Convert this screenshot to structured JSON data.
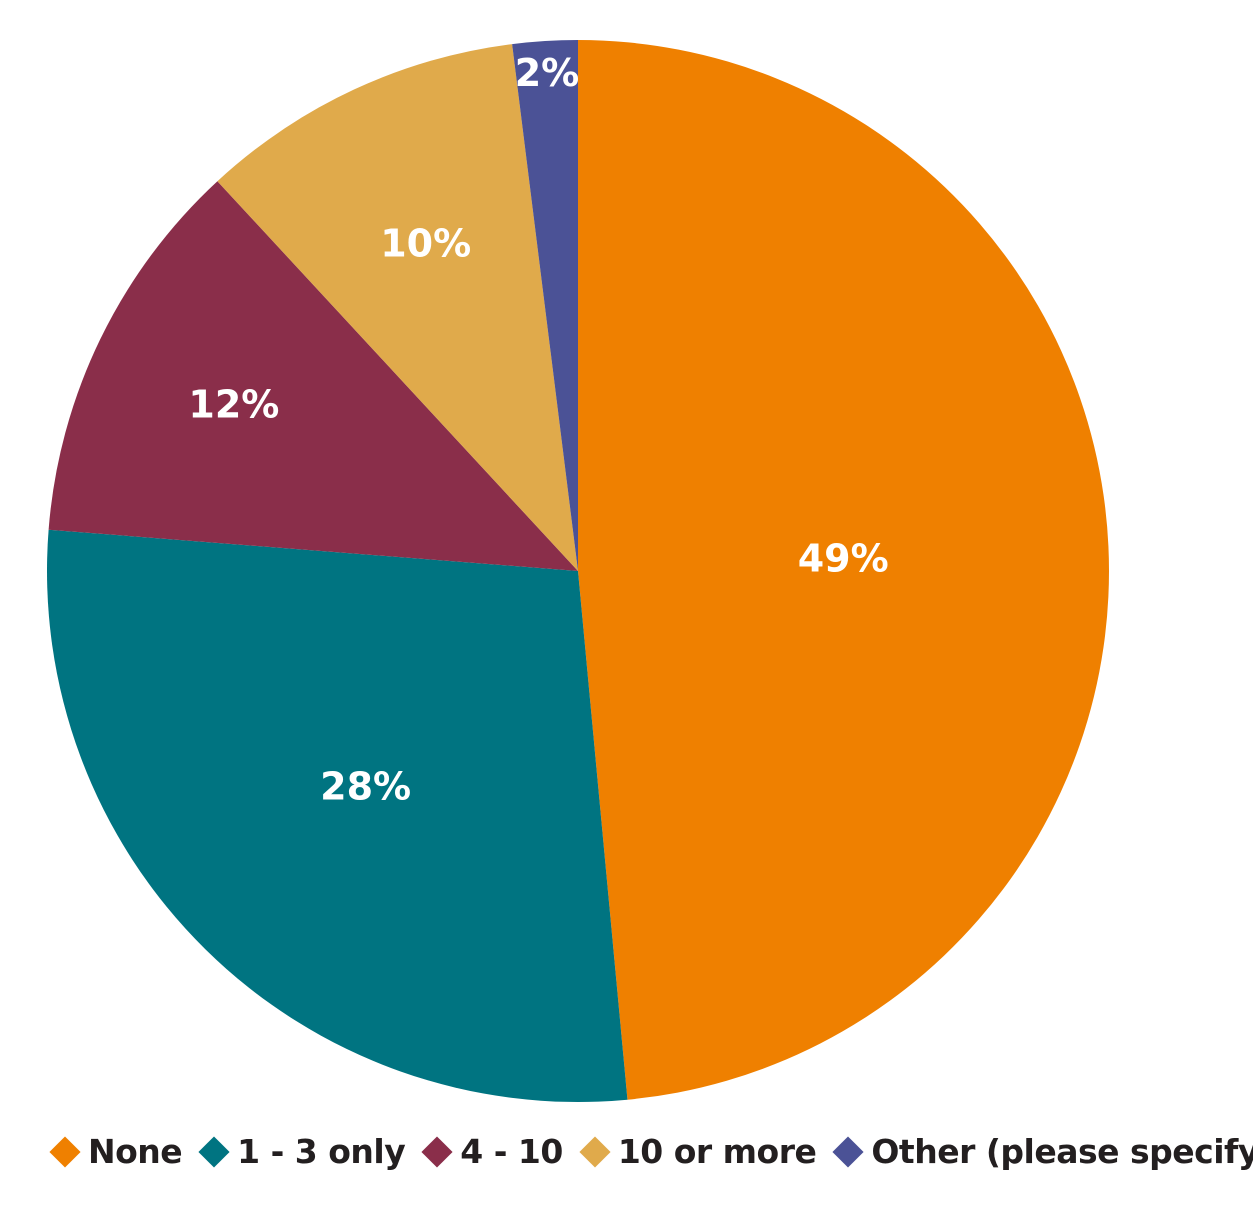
{
  "chart_data": {
    "type": "pie",
    "title": "",
    "legend_position": "bottom",
    "start_angle": "12 o'clock",
    "direction": "clockwise",
    "slices": [
      {
        "name": "None",
        "value": 49,
        "label": "49%",
        "color": "#EF8000"
      },
      {
        "name": "1 - 3 only",
        "value": 28,
        "label": "28%",
        "color": "#007481"
      },
      {
        "name": "4 - 10",
        "value": 12,
        "label": "12%",
        "color": "#8A2E4A"
      },
      {
        "name": "10 or more",
        "value": 10,
        "label": "10%",
        "color": "#E0AA4B"
      },
      {
        "name": "Other (please specify)",
        "value": 2,
        "label": "2%",
        "color": "#4B5296"
      }
    ]
  }
}
